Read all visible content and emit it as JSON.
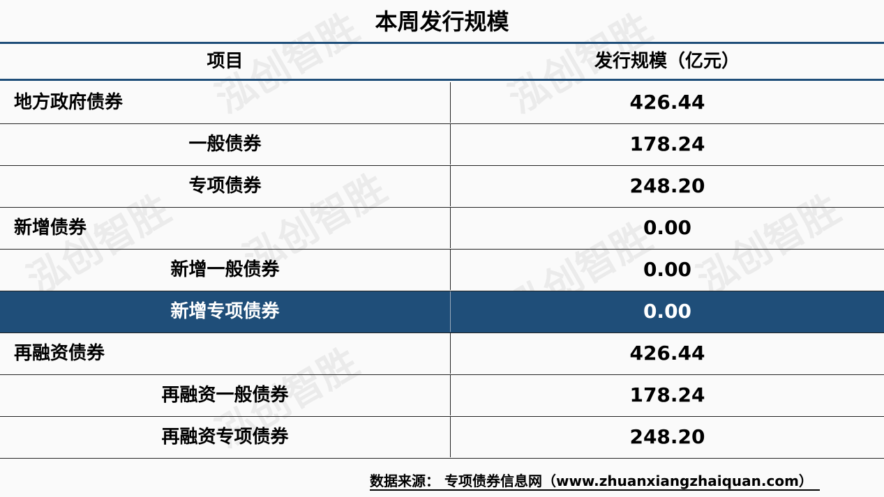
{
  "title": "本周发行规模",
  "header": {
    "item": "项目",
    "scale": "发行规模（亿元）"
  },
  "rows": [
    {
      "name": "地方政府债券",
      "value": "426.44",
      "level": 0
    },
    {
      "name": "一般债券",
      "value": "178.24",
      "level": 1
    },
    {
      "name": "专项债券",
      "value": "248.20",
      "level": 1
    },
    {
      "name": "新增债券",
      "value": "0.00",
      "level": 0
    },
    {
      "name": "新增一般债券",
      "value": "0.00",
      "level": 1
    },
    {
      "name": "新增专项债券",
      "value": "0.00",
      "level": 1,
      "highlighted": true
    },
    {
      "name": "再融资债券",
      "value": "426.44",
      "level": 0
    },
    {
      "name": "再融资一般债券",
      "value": "178.24",
      "level": 1
    },
    {
      "name": "再融资专项债券",
      "value": "248.20",
      "level": 1
    }
  ],
  "footer": "数据来源： 专项债券信息网（www.zhuanxiangzhaiquan.com）",
  "watermark": "泓创智胜",
  "colors": {
    "accent": "#1f4e79"
  }
}
